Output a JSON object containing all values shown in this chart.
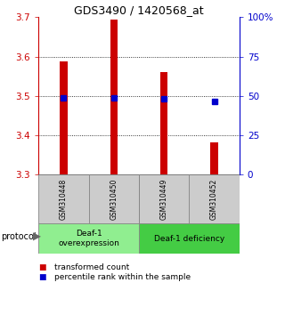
{
  "title": "GDS3490 / 1420568_at",
  "samples": [
    "GSM310448",
    "GSM310450",
    "GSM310449",
    "GSM310452"
  ],
  "bar_values": [
    3.587,
    3.695,
    3.562,
    3.383
  ],
  "bar_bottom": 3.3,
  "percentile_values": [
    0.487,
    0.487,
    0.484,
    0.466
  ],
  "ylim": [
    3.3,
    3.7
  ],
  "yticks_left": [
    3.3,
    3.4,
    3.5,
    3.6,
    3.7
  ],
  "yticks_right_vals": [
    0,
    0.25,
    0.5,
    0.75,
    1.0
  ],
  "yticks_right_labels": [
    "0",
    "25",
    "50",
    "75",
    "100%"
  ],
  "bar_color": "#cc0000",
  "percentile_color": "#0000cc",
  "group1_label": "Deaf-1\noverexpression",
  "group2_label": "Deaf-1 deficiency",
  "group1_color": "#90ee90",
  "group2_color": "#44cc44",
  "protocol_label": "protocol",
  "legend_bar_label": "transformed count",
  "legend_pct_label": "percentile rank within the sample",
  "bar_width": 0.15,
  "sample_box_color": "#cccccc",
  "divider_color": "#888888"
}
